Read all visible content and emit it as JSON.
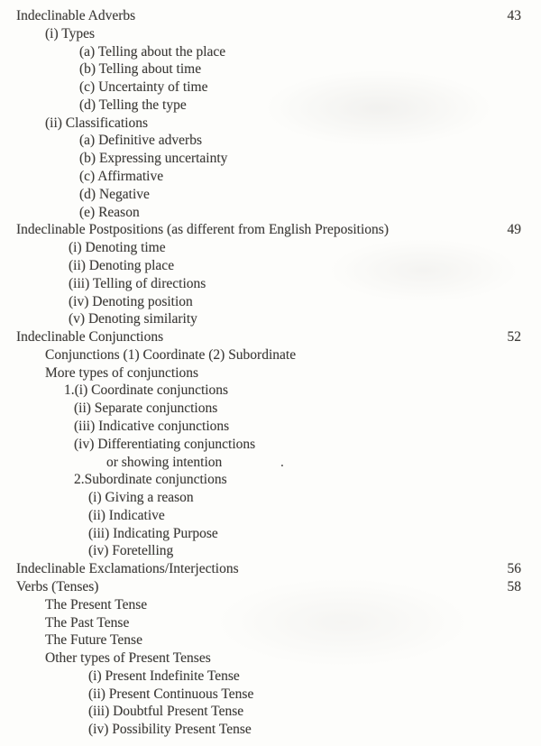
{
  "document": {
    "kind": "table-of-contents scanned book page",
    "background_color": "#fdfdfb",
    "text_color": "#3d3b38"
  },
  "artifacts": {
    "stray_dot": "."
  },
  "toc": {
    "rows": [
      {
        "text": "Indeclinable Adverbs",
        "indent": 0,
        "page": "43"
      },
      {
        "text": "(i) Types",
        "indent": 1
      },
      {
        "text": "(a) Telling about the place",
        "indent": 3
      },
      {
        "text": "(b) Telling about time",
        "indent": 3
      },
      {
        "text": "(c) Uncertainty of time",
        "indent": 3
      },
      {
        "text": "(d) Telling the type",
        "indent": 3
      },
      {
        "text": "(ii) Classifications",
        "indent": 1
      },
      {
        "text": "(a) Definitive adverbs",
        "indent": 3
      },
      {
        "text": "(b) Expressing uncertainty",
        "indent": 3
      },
      {
        "text": "(c) Affirmative",
        "indent": 3
      },
      {
        "text": "(d) Negative",
        "indent": 3
      },
      {
        "text": "(e) Reason",
        "indent": 3
      },
      {
        "text": "Indeclinable Postpositions (as different from English Prepositions)",
        "indent": 0,
        "page": "49"
      },
      {
        "text": "(i) Denoting time",
        "indent": 2
      },
      {
        "text": "(ii) Denoting place",
        "indent": 2
      },
      {
        "text": "(iii) Telling of directions",
        "indent": 2
      },
      {
        "text": "(iv) Denoting position",
        "indent": 2
      },
      {
        "text": "(v) Denoting similarity",
        "indent": 2
      },
      {
        "text": "Indeclinable Conjunctions",
        "indent": 0,
        "page": "52"
      },
      {
        "text": "Conjunctions (1) Coordinate (2) Subordinate",
        "indent": 1
      },
      {
        "text": "More types of conjunctions",
        "indent": 1
      },
      {
        "text": "1.(i) Coordinate conjunctions",
        "indent": 4
      },
      {
        "text": "(ii) Separate conjunctions",
        "indent": 5
      },
      {
        "text": "(iii) Indicative conjunctions",
        "indent": 5
      },
      {
        "text": "(iv) Differentiating conjunctions",
        "indent": 5
      },
      {
        "text": "or showing intention",
        "indent": 7
      },
      {
        "text": "2.Subordinate conjunctions",
        "indent": 5
      },
      {
        "text": "(i) Giving a reason",
        "indent": 6
      },
      {
        "text": "(ii) Indicative",
        "indent": 6
      },
      {
        "text": "(iii) Indicating Purpose",
        "indent": 6
      },
      {
        "text": "(iv) Foretelling",
        "indent": 6
      },
      {
        "text": "Indeclinable Exclamations/Interjections",
        "indent": 0,
        "page": "56"
      },
      {
        "text": "Verbs (Tenses)",
        "indent": 0,
        "page": "58"
      },
      {
        "text": "The Present Tense",
        "indent": 1
      },
      {
        "text": "The Past Tense",
        "indent": 1
      },
      {
        "text": "The Future Tense",
        "indent": 1
      },
      {
        "text": "Other types of Present Tenses",
        "indent": 1
      },
      {
        "text": "(i) Present Indefinite Tense",
        "indent": 6
      },
      {
        "text": "(ii) Present Continuous Tense",
        "indent": 6
      },
      {
        "text": "(iii) Doubtful Present Tense",
        "indent": 6
      },
      {
        "text": "(iv) Possibility Present Tense",
        "indent": 6
      }
    ]
  }
}
